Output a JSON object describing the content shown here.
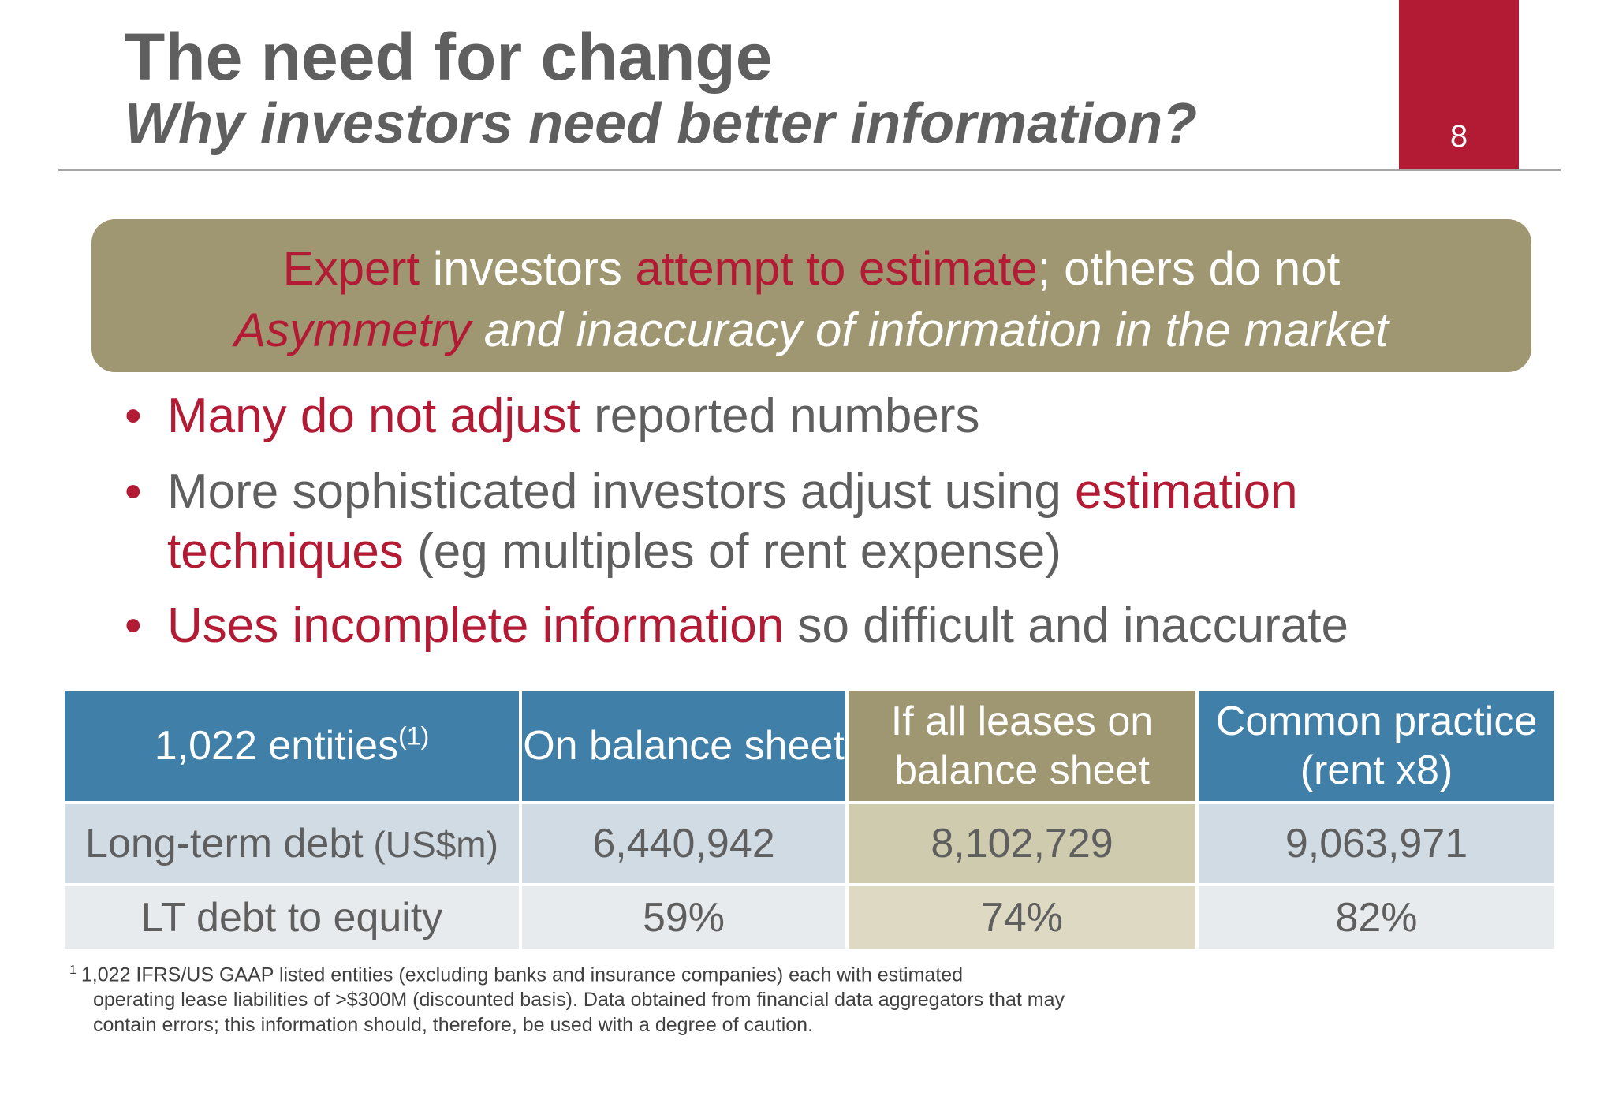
{
  "header": {
    "title": "The need for change",
    "subtitle": "Why investors need better information?",
    "page_number": "8"
  },
  "callout": {
    "line1": [
      "Expert",
      " investors ",
      "attempt to estimate",
      "; others do not"
    ],
    "line2": [
      "Asymmetry",
      " and inaccuracy of information in the market"
    ]
  },
  "bullets": [
    {
      "highlight": "Many do not adjust",
      "text": " reported numbers"
    },
    {
      "text": "More sophisticated investors adjust using ",
      "highlight": "estimation techniques",
      "text_after": " (eg multiples of rent expense)"
    },
    {
      "highlight": "Uses incomplete information",
      "text": " so difficult and inaccurate"
    }
  ],
  "table": {
    "header": {
      "label": "1,022 entities",
      "label_sup": "(1)",
      "col1": "On balance sheet",
      "col2": "If all leases on balance sheet",
      "col3": "Common practice (rent x8)"
    },
    "rows": [
      {
        "label": "Long-term debt",
        "unit": " (US$m)",
        "col1": "6,440,942",
        "col2": "8,102,729",
        "col3": "9,063,971"
      },
      {
        "label": "LT debt to equity",
        "col1": "59%",
        "col2": "74%",
        "col3": "82%"
      }
    ]
  },
  "footnote": {
    "marker": "1",
    "first": "1,022 IFRS/US GAAP listed entities (excluding banks and insurance companies) each with estimated",
    "rest": "operating lease liabilities of >$300M (discounted basis). Data obtained from financial data aggregators that may contain errors; this information should, therefore, be used with a degree of caution."
  },
  "colors": {
    "accent_red": "#b31b34",
    "olive": "#9e9771",
    "table_blue": "#3f7fa8",
    "text_gray": "#5f5f5f"
  }
}
